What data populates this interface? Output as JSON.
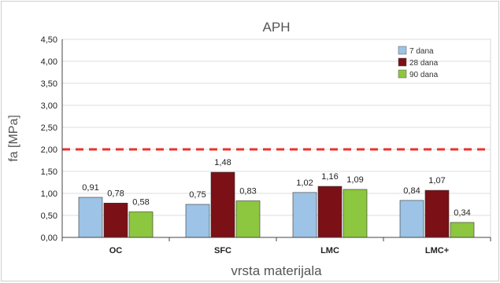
{
  "chart_data": {
    "type": "bar",
    "title": "APH",
    "xlabel": "vrsta materijala",
    "ylabel": "fa [MPa]",
    "categories": [
      "OC",
      "SFC",
      "LMC",
      "LMC+"
    ],
    "series": [
      {
        "name": "7 dana",
        "color": "#9dc3e6",
        "values": [
          0.91,
          0.75,
          1.02,
          0.84
        ],
        "labels": [
          "0,91",
          "0,75",
          "1,02",
          "0,84"
        ]
      },
      {
        "name": "28 dana",
        "color": "#7b1016",
        "values": [
          0.78,
          1.48,
          1.16,
          1.07
        ],
        "labels": [
          "0,78",
          "1,48",
          "1,16",
          "1,07"
        ]
      },
      {
        "name": "90 dana",
        "color": "#8dc63f",
        "values": [
          0.58,
          0.83,
          1.09,
          0.34
        ],
        "labels": [
          "0,58",
          "0,83",
          "1,09",
          "0,34"
        ]
      }
    ],
    "ylim": [
      0,
      4.5
    ],
    "yticks": [
      "0,00",
      "0,50",
      "1,00",
      "1,50",
      "2,00",
      "2,50",
      "3,00",
      "3,50",
      "4,00",
      "4,50"
    ],
    "reference_line": {
      "value": 2.0,
      "color": "#e8322b",
      "style": "dashed"
    },
    "grid": true,
    "legend_position": "top-right"
  }
}
